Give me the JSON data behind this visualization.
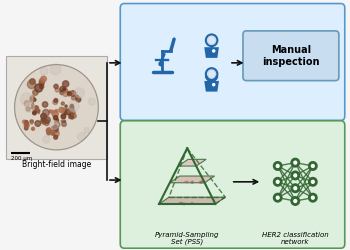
{
  "bg_color": "#f5f5f5",
  "blue_box_color": "#ddeeff",
  "blue_box_border": "#5599cc",
  "green_box_color": "#ddf0dd",
  "green_box_border": "#559955",
  "manual_box_color": "#c8ddf0",
  "manual_box_border": "#6699bb",
  "arrow_color": "#111111",
  "icon_blue": "#2266aa",
  "icon_green": "#336633",
  "text_brightfield": "Bright-field image",
  "text_manual": "Manual\ninspection",
  "text_pss": "Pyramid-Sampling\nSet (PSS)",
  "text_her2": "HER2 classification\nnetwork",
  "scale_bar_label": "200 μm",
  "tissue_bg": "#e8e4de",
  "figsize": [
    3.5,
    2.5
  ],
  "dpi": 100
}
